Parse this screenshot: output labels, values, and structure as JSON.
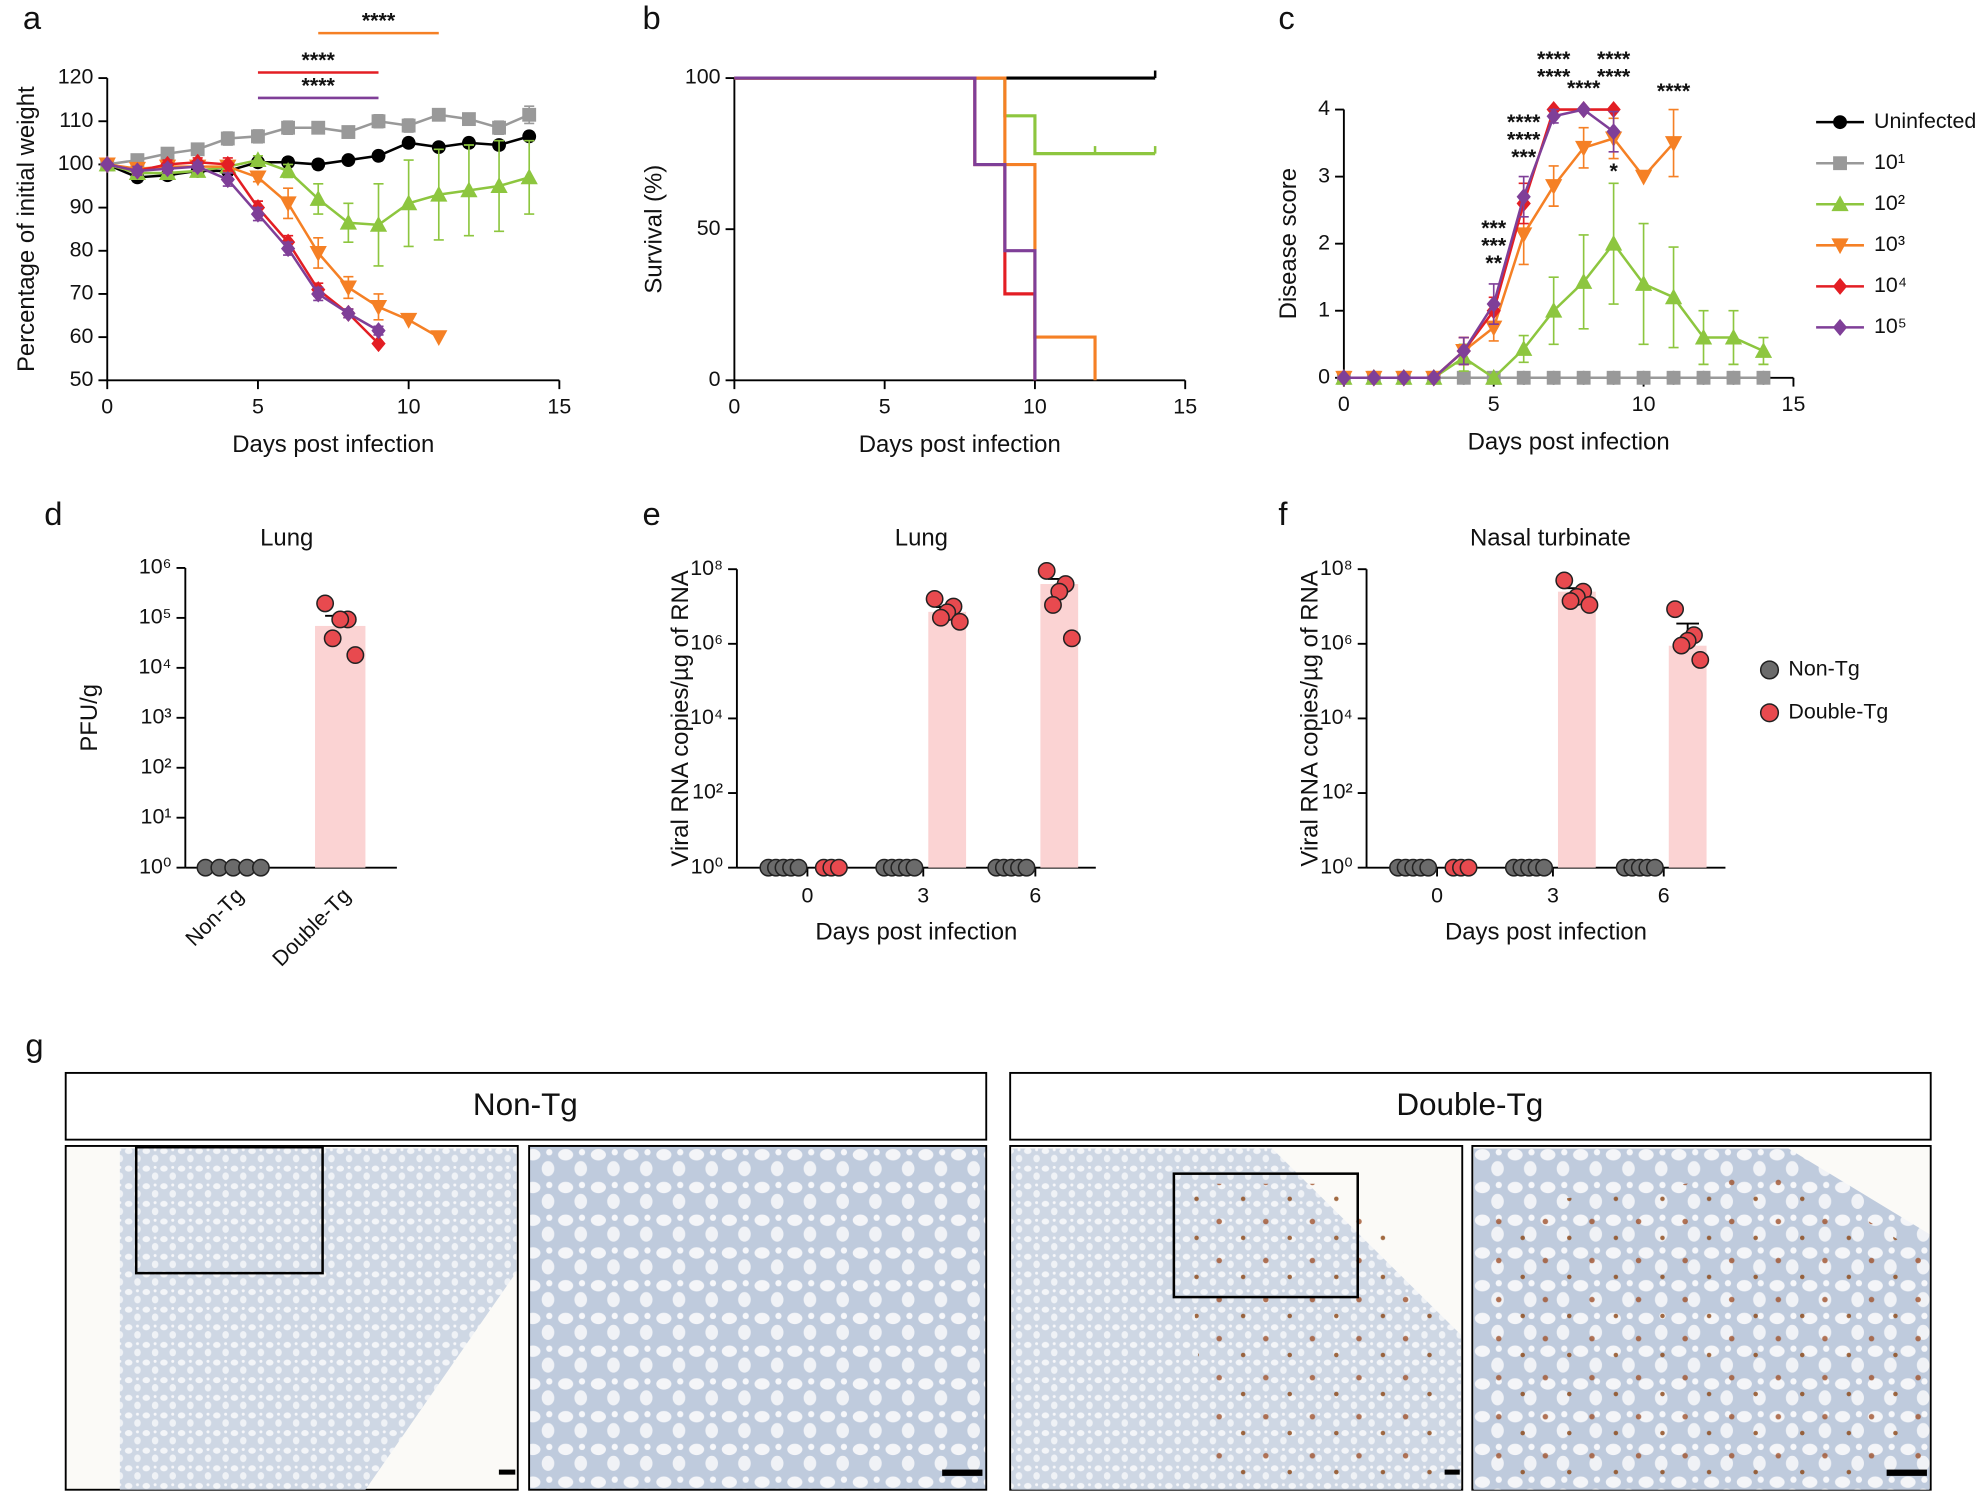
{
  "chart_data": [
    {
      "panel": "a",
      "type": "line",
      "xlabel": "Days post infection",
      "ylabel": "Percentage of initial weight",
      "xlim": [
        0,
        15
      ],
      "ylim": [
        50,
        120
      ],
      "xticks": [
        0,
        5,
        10,
        15
      ],
      "yticks": [
        50,
        60,
        70,
        80,
        90,
        100,
        110,
        120
      ],
      "series": [
        {
          "color": "#000000",
          "marker": "circle",
          "x": [
            0,
            1,
            2,
            3,
            4,
            5,
            6,
            7,
            8,
            9,
            10,
            11,
            12,
            13,
            14
          ],
          "values": [
            100,
            97,
            97.5,
            98.5,
            98.5,
            100.5,
            100.5,
            100,
            101,
            102,
            105,
            104,
            105,
            104.5,
            106.5
          ],
          "errors": [
            0,
            1,
            1,
            1,
            1,
            0.5,
            1,
            1,
            0.5,
            0.5,
            1,
            0.5,
            1,
            1,
            1
          ]
        },
        {
          "color": "#999999",
          "marker": "square",
          "x": [
            0,
            1,
            2,
            3,
            4,
            5,
            6,
            7,
            8,
            9,
            10,
            11,
            12,
            13,
            14
          ],
          "values": [
            100,
            101,
            102.5,
            103.5,
            106,
            106.5,
            108.5,
            108.5,
            107.5,
            110,
            109,
            111.5,
            110.5,
            108.5,
            111.5
          ],
          "errors": [
            0,
            0.5,
            0.5,
            1,
            1.5,
            1.5,
            1.5,
            1,
            1,
            1.5,
            1.5,
            1,
            1,
            1.5,
            2
          ]
        },
        {
          "color": "#8dc63f",
          "marker": "triangle",
          "x": [
            0,
            1,
            2,
            3,
            4,
            5,
            6,
            7,
            8,
            9,
            10,
            11,
            12,
            13,
            14
          ],
          "values": [
            100,
            98,
            98,
            98.5,
            99.5,
            101,
            98.5,
            92,
            86.5,
            86,
            91,
            93,
            94,
            95,
            97
          ],
          "errors": [
            0,
            1,
            1,
            1,
            1,
            1,
            1.5,
            3.5,
            4.5,
            9.5,
            10,
            10.5,
            10.5,
            10.5,
            8.5
          ]
        },
        {
          "color": "#f58025",
          "marker": "down",
          "x": [
            0,
            1,
            2,
            3,
            4,
            5,
            6,
            7,
            8,
            9,
            10,
            11
          ],
          "values": [
            100,
            99,
            99.5,
            99.5,
            99.5,
            97,
            91,
            79.5,
            71.5,
            67,
            64,
            60
          ],
          "errors": [
            0,
            1,
            1,
            1,
            1,
            1,
            3.5,
            3.5,
            2.5,
            3,
            0,
            0
          ]
        },
        {
          "color": "#e31e24",
          "marker": "diamond",
          "x": [
            0,
            1,
            2,
            3,
            4,
            5,
            6,
            7,
            8,
            9
          ],
          "values": [
            100,
            98.5,
            100,
            100.5,
            100,
            90,
            82,
            71,
            65.5,
            58.5
          ],
          "errors": [
            0,
            1,
            1,
            1,
            1.5,
            1.5,
            1.5,
            1.5,
            1,
            0
          ]
        },
        {
          "color": "#7f3f98",
          "marker": "diamond",
          "x": [
            0,
            1,
            2,
            3,
            4,
            5,
            6,
            7,
            8,
            9
          ],
          "values": [
            100,
            98.5,
            99,
            99.5,
            96.5,
            88.5,
            80.5,
            70,
            65.5,
            61.5
          ],
          "errors": [
            0,
            1,
            1,
            1,
            1.5,
            1.5,
            1.5,
            1.5,
            1,
            1
          ]
        }
      ],
      "annotations": [
        {
          "text": "****",
          "color": "#f58025",
          "from": 7,
          "to": 11,
          "y": 130.4
        },
        {
          "text": "****",
          "color": "#e31e24",
          "from": 5,
          "to": 9,
          "y": 121.3
        },
        {
          "text": "****",
          "color": "#7f3f98",
          "from": 5,
          "to": 9,
          "y": 115.4
        }
      ]
    },
    {
      "panel": "b",
      "type": "step",
      "xlabel": "Days post infection",
      "ylabel": "Survival (%)",
      "xlim": [
        0,
        15
      ],
      "ylim": [
        0,
        100
      ],
      "xticks": [
        0,
        5,
        10,
        15
      ],
      "yticks": [
        0,
        50,
        100
      ],
      "series": [
        {
          "color": "#000000",
          "x": [
            0
          ],
          "values": [
            100
          ],
          "censored": [
            14
          ]
        },
        {
          "color": "#8dc63f",
          "x": [
            0,
            9,
            10
          ],
          "values": [
            100,
            87.5,
            75
          ],
          "censored": [
            12,
            14
          ]
        },
        {
          "color": "#f58025",
          "x": [
            0,
            9,
            10,
            12
          ],
          "values": [
            100,
            71.4,
            14.3,
            0
          ]
        },
        {
          "color": "#e31e24",
          "x": [
            0,
            8,
            9,
            10
          ],
          "values": [
            100,
            71.4,
            28.6,
            0
          ]
        },
        {
          "color": "#7f3f98",
          "x": [
            0,
            8,
            9,
            10
          ],
          "values": [
            100,
            71.4,
            42.9,
            0
          ]
        }
      ]
    },
    {
      "panel": "c",
      "type": "line",
      "xlabel": "Days post infection",
      "ylabel": "Disease score",
      "xlim": [
        0,
        15
      ],
      "ylim": [
        0,
        4
      ],
      "xticks": [
        0,
        5,
        10,
        15
      ],
      "yticks": [
        0,
        1,
        2,
        3,
        4
      ],
      "legend": "right",
      "series": [
        {
          "name": "Uninfected",
          "color": "#000000",
          "marker": "circle",
          "x": [
            0,
            1,
            2,
            3,
            4,
            5,
            6,
            7,
            8,
            9,
            10,
            11,
            12,
            13,
            14
          ],
          "values": [
            0,
            0,
            0,
            0,
            0,
            0,
            0,
            0,
            0,
            0,
            0,
            0,
            0,
            0,
            0
          ],
          "errors": [
            0,
            0,
            0,
            0,
            0,
            0,
            0,
            0,
            0,
            0,
            0,
            0,
            0,
            0,
            0
          ]
        },
        {
          "name": "10¹",
          "color": "#999999",
          "marker": "square",
          "x": [
            0,
            1,
            2,
            3,
            4,
            5,
            6,
            7,
            8,
            9,
            10,
            11,
            12,
            13,
            14
          ],
          "values": [
            0,
            0,
            0,
            0,
            0,
            0,
            0,
            0,
            0,
            0,
            0,
            0,
            0,
            0,
            0
          ],
          "errors": [
            0,
            0,
            0,
            0,
            0,
            0,
            0,
            0,
            0,
            0,
            0,
            0,
            0,
            0,
            0
          ]
        },
        {
          "name": "10²",
          "color": "#8dc63f",
          "marker": "triangle",
          "x": [
            0,
            1,
            2,
            3,
            4,
            5,
            6,
            7,
            8,
            9,
            10,
            11,
            12,
            13,
            14
          ],
          "values": [
            0,
            0,
            0,
            0,
            0.3,
            0,
            0.43,
            1,
            1.43,
            2,
            1.4,
            1.2,
            0.6,
            0.6,
            0.4
          ],
          "errors": [
            0,
            0,
            0,
            0,
            0.2,
            0,
            0.2,
            0.5,
            0.7,
            0.9,
            0.9,
            0.75,
            0.4,
            0.4,
            0.2
          ]
        },
        {
          "name": "10³",
          "color": "#f58025",
          "marker": "down",
          "x": [
            0,
            1,
            2,
            3,
            4,
            5,
            6,
            7,
            8,
            9,
            10,
            11
          ],
          "values": [
            0,
            0,
            0,
            0,
            0.4,
            0.75,
            2.14,
            2.86,
            3.43,
            3.57,
            3,
            3.5
          ],
          "errors": [
            0,
            0,
            0,
            0,
            0.2,
            0.2,
            0.45,
            0.3,
            0.3,
            0.3,
            0,
            0.5
          ]
        },
        {
          "name": "10⁴",
          "color": "#e31e24",
          "marker": "diamond",
          "x": [
            0,
            1,
            2,
            3,
            4,
            5,
            6,
            7,
            8,
            9
          ],
          "values": [
            0,
            0,
            0,
            0,
            0.4,
            1,
            2.6,
            4,
            4,
            4
          ],
          "errors": [
            0,
            0,
            0,
            0,
            0.2,
            0.2,
            0.3,
            0,
            0,
            0
          ]
        },
        {
          "name": "10⁵",
          "color": "#7f3f98",
          "marker": "diamond",
          "x": [
            0,
            1,
            2,
            3,
            4,
            5,
            6,
            7,
            8,
            9
          ],
          "values": [
            0,
            0,
            0,
            0,
            0.4,
            1.1,
            2.7,
            3.9,
            4,
            3.67
          ],
          "errors": [
            0,
            0,
            0,
            0,
            0.2,
            0.3,
            0.3,
            0.1,
            0,
            0.3
          ]
        }
      ],
      "annotations": [
        {
          "x": 5,
          "y": 1.69,
          "labels": [
            {
              "text": "***",
              "color": "#7f3f98"
            },
            {
              "text": "***",
              "color": "#e31e24"
            },
            {
              "text": "**",
              "color": "#f58025"
            }
          ]
        },
        {
          "x": 6,
          "y": 3.27,
          "labels": [
            {
              "text": "****",
              "color": "#7f3f98"
            },
            {
              "text": "****",
              "color": "#e31e24"
            },
            {
              "text": "***",
              "color": "#f58025"
            }
          ]
        },
        {
          "x": 7,
          "y": 4.47,
          "labels": [
            {
              "text": "****",
              "color": "#e31e24"
            },
            {
              "text": "****",
              "color": "#f58025"
            }
          ]
        },
        {
          "x": 8,
          "y": 4.3,
          "labels": [
            {
              "text": "****",
              "color": "#f58025"
            }
          ]
        },
        {
          "x": 9,
          "y": 3.06,
          "labels": [
            {
              "text": "*",
              "color": "#8dc63f"
            }
          ]
        },
        {
          "x": 9,
          "y": 4.47,
          "labels": [
            {
              "text": "****",
              "color": "#7f3f98"
            },
            {
              "text": "****",
              "color": "#f58025"
            }
          ]
        },
        {
          "x": 11,
          "y": 4.26,
          "labels": [
            {
              "text": "****",
              "color": "#f58025"
            }
          ]
        }
      ]
    },
    {
      "panel": "d",
      "type": "bar",
      "title": "Lung",
      "ylabel": "PFU/g",
      "log": true,
      "ylim": [
        1,
        1000000
      ],
      "yticks": [
        {
          "value": 1,
          "label": "10⁰"
        },
        {
          "value": 10,
          "label": "10¹"
        },
        {
          "value": 100,
          "label": "10²"
        },
        {
          "value": 1000,
          "label": "10³"
        },
        {
          "value": 10000,
          "label": "10⁴"
        },
        {
          "value": 100000,
          "label": "10⁵"
        },
        {
          "value": 1000000,
          "label": "10⁶"
        }
      ],
      "categories": [
        "Non-Tg",
        "Double-Tg"
      ],
      "values": [
        1,
        69000
      ],
      "errors": [
        0,
        41000
      ],
      "colors": [
        "#6b6b6b",
        "#e84a4f"
      ],
      "bar_color": "#fbd3d3",
      "points": [
        [
          1,
          1,
          1,
          1,
          1
        ],
        [
          195000,
          93000,
          93000,
          39000,
          18000
        ]
      ]
    },
    {
      "panel": "e",
      "type": "grouped_bar",
      "title": "Lung",
      "xlabel": "Days post infection",
      "ylabel": "Viral RNA copies/µg of RNA",
      "log": true,
      "ylim": [
        1,
        100000000
      ],
      "yticks": [
        {
          "value": 1,
          "label": "10⁰"
        },
        {
          "value": 100,
          "label": "10²"
        },
        {
          "value": 10000,
          "label": "10⁴"
        },
        {
          "value": 1000000,
          "label": "10⁶"
        },
        {
          "value": 100000000,
          "label": "10⁸"
        }
      ],
      "categories": [
        "0",
        "3",
        "6"
      ],
      "series": [
        {
          "color": "#6b6b6b",
          "bar_color": "#d0d0d0",
          "values": [
            1,
            1,
            1
          ],
          "errors": [
            0,
            0,
            0
          ],
          "points": [
            [
              1,
              1,
              1,
              1,
              1
            ],
            [
              1,
              1,
              1,
              1,
              1
            ],
            [
              1,
              1,
              1,
              1,
              1
            ]
          ]
        },
        {
          "color": "#e84a4f",
          "bar_color": "#fbd3d3",
          "values": [
            1,
            7200000,
            40000000
          ],
          "errors": [
            0,
            2500000,
            15000000
          ],
          "points": [
            [
              1,
              1,
              1
            ],
            [
              16000000,
              10000000,
              7000000,
              5000000,
              3900000
            ],
            [
              90000000,
              40000000,
              25000000,
              11000000,
              1400000
            ]
          ]
        }
      ]
    },
    {
      "panel": "f",
      "type": "grouped_bar",
      "title": "Nasal turbinate",
      "xlabel": "Days post infection",
      "ylabel": "Viral RNA copies/µg of RNA",
      "log": true,
      "ylim": [
        1,
        100000000
      ],
      "legend": "right",
      "yticks": [
        {
          "value": 1,
          "label": "10⁰"
        },
        {
          "value": 100,
          "label": "10²"
        },
        {
          "value": 10000,
          "label": "10⁴"
        },
        {
          "value": 1000000,
          "label": "10⁶"
        },
        {
          "value": 100000000,
          "label": "10⁸"
        }
      ],
      "categories": [
        "0",
        "3",
        "6"
      ],
      "series": [
        {
          "name": "Non-Tg",
          "color": "#6b6b6b",
          "bar_color": "#d0d0d0",
          "values": [
            1,
            1,
            1
          ],
          "errors": [
            0,
            0,
            0
          ],
          "points": [
            [
              1,
              1,
              1,
              1,
              1
            ],
            [
              1,
              1,
              1,
              1,
              1
            ],
            [
              1,
              1,
              1,
              1,
              1
            ]
          ]
        },
        {
          "name": "Double-Tg",
          "color": "#e84a4f",
          "bar_color": "#fbd3d3",
          "values": [
            1,
            25000000,
            890000
          ],
          "errors": [
            0,
            6000000,
            2600000
          ],
          "points": [
            [
              1,
              1,
              1
            ],
            [
              50000000,
              25000000,
              18000000,
              14000000,
              11000000
            ],
            [
              8500000,
              1700000,
              1200000,
              900000,
              370000
            ]
          ]
        }
      ]
    }
  ],
  "panel_g": {
    "panel": "g",
    "headers": [
      "Non-Tg",
      "Double-Tg"
    ]
  }
}
